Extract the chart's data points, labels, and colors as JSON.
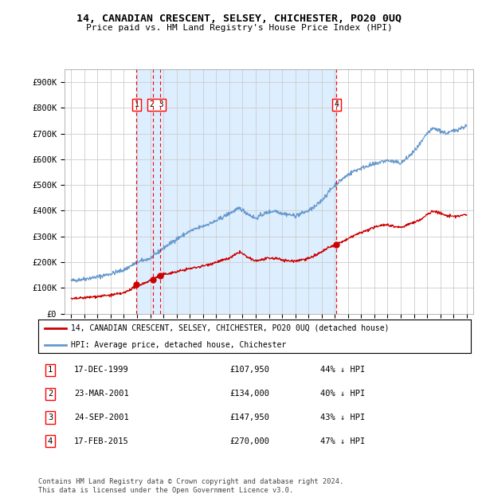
{
  "title": "14, CANADIAN CRESCENT, SELSEY, CHICHESTER, PO20 0UQ",
  "subtitle": "Price paid vs. HM Land Registry's House Price Index (HPI)",
  "footer": "Contains HM Land Registry data © Crown copyright and database right 2024.\nThis data is licensed under the Open Government Licence v3.0.",
  "legend_house": "14, CANADIAN CRESCENT, SELSEY, CHICHESTER, PO20 0UQ (detached house)",
  "legend_hpi": "HPI: Average price, detached house, Chichester",
  "house_color": "#cc0000",
  "hpi_color": "#6699cc",
  "shade_color": "#ddeeff",
  "plot_bg": "#ffffff",
  "ylim": [
    0,
    950000
  ],
  "yticks": [
    0,
    100000,
    200000,
    300000,
    400000,
    500000,
    600000,
    700000,
    800000,
    900000
  ],
  "ytick_labels": [
    "£0",
    "£100K",
    "£200K",
    "£300K",
    "£400K",
    "£500K",
    "£600K",
    "£700K",
    "£800K",
    "£900K"
  ],
  "transactions": [
    {
      "label": "1",
      "date": "17-DEC-1999",
      "price": 107950,
      "pct": "44%",
      "x": 1999.96
    },
    {
      "label": "2",
      "date": "23-MAR-2001",
      "price": 134000,
      "pct": "40%",
      "x": 2001.23
    },
    {
      "label": "3",
      "date": "24-SEP-2001",
      "price": 147950,
      "pct": "43%",
      "x": 2001.73
    },
    {
      "label": "4",
      "date": "17-FEB-2015",
      "price": 270000,
      "pct": "47%",
      "x": 2015.13
    }
  ],
  "xlim": [
    1994.5,
    2025.5
  ],
  "xticks": [
    1995,
    1996,
    1997,
    1998,
    1999,
    2000,
    2001,
    2002,
    2003,
    2004,
    2005,
    2006,
    2007,
    2008,
    2009,
    2010,
    2011,
    2012,
    2013,
    2014,
    2015,
    2016,
    2017,
    2018,
    2019,
    2020,
    2021,
    2022,
    2023,
    2024,
    2025
  ]
}
